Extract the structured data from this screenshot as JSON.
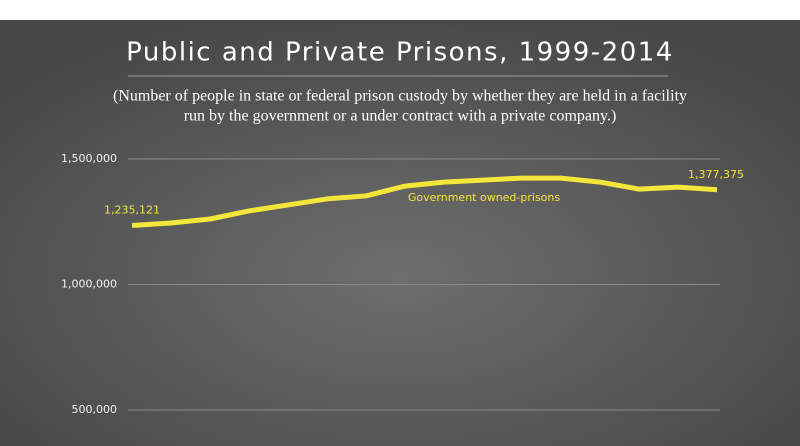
{
  "chart_data": {
    "type": "line",
    "title": "Public and Private Prisons, 1999-2014",
    "subtitle": [
      "(Number of people in state or federal prison custody by whether they are held in a facility",
      "run by the government or a under contract with a private company.)"
    ],
    "categories": [
      null,
      null,
      null,
      null,
      null,
      null,
      null,
      null,
      null,
      null,
      null,
      null,
      null,
      null,
      null,
      null
    ],
    "series": [
      {
        "name": "Government owned-prisons",
        "color": "#f2e63a",
        "values": [
          1235121,
          1245000,
          1261000,
          1293000,
          1317000,
          1341000,
          1353000,
          1392000,
          1408000,
          1416000,
          1424000,
          1424000,
          1408000,
          1380000,
          1388000,
          1377375
        ],
        "value_labels": [
          "1,235,121",
          null,
          null,
          null,
          null,
          null,
          null,
          null,
          null,
          null,
          null,
          null,
          null,
          null,
          null,
          "1,377,375"
        ]
      }
    ],
    "ylim": [
      500000,
      1500000
    ],
    "yticks": [
      {
        "value": 500000,
        "label": "500,000"
      },
      {
        "value": 1000000,
        "label": "1,000,000"
      },
      {
        "value": 1500000,
        "label": "1,500,000"
      }
    ],
    "grid": true
  }
}
